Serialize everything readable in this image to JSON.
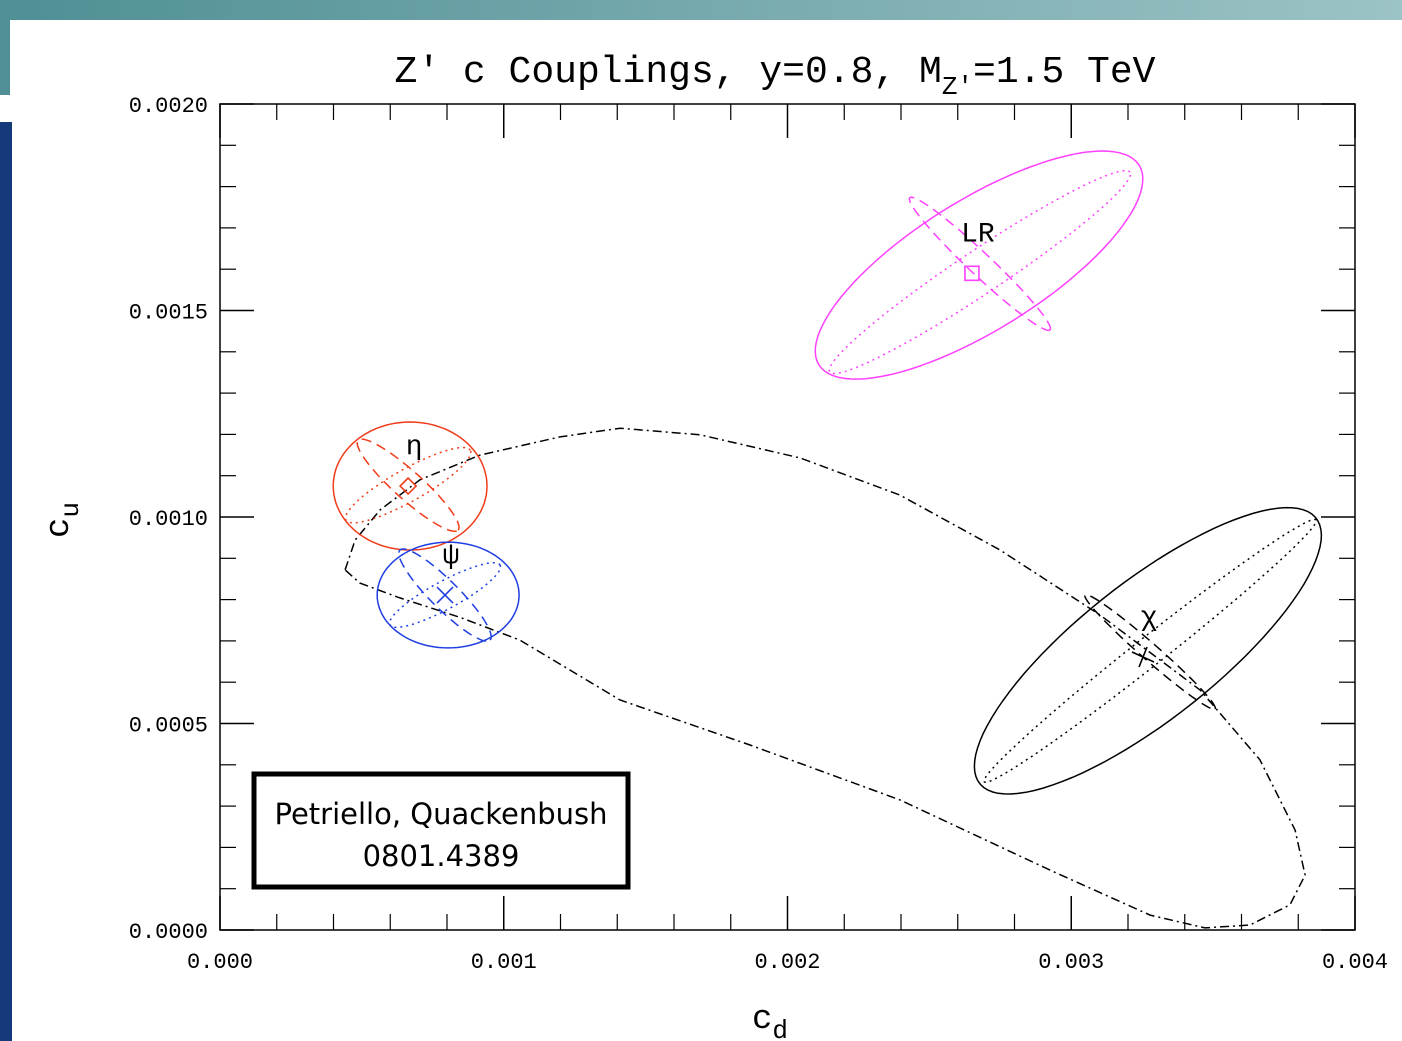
{
  "chart_data": {
    "type": "scatter",
    "title": "Z′ c Couplings, y=0.8, M",
    "title_subscript": "Z′",
    "title_end": "=1.5 TeV",
    "x_label": "c",
    "x_label_subscript": "d",
    "y_label": "c",
    "y_label_subscript": "u",
    "annotation": [
      "Petriello, Quackenbush",
      "0801.4389"
    ],
    "xlim": [
      0,
      0.004
    ],
    "ylim": [
      0,
      0.002
    ],
    "xticks": [
      {
        "value": 0,
        "label": "0.000"
      },
      {
        "value": 0.001,
        "label": "0.001"
      },
      {
        "value": 0.002,
        "label": "0.002"
      },
      {
        "value": 0.003,
        "label": "0.003"
      },
      {
        "value": 0.004,
        "label": "0.004"
      }
    ],
    "yticks": [
      {
        "value": 0,
        "label": "0.0000"
      },
      {
        "value": 0.0005,
        "label": "0.0005"
      },
      {
        "value": 0.001,
        "label": "0.0010"
      },
      {
        "value": 0.0015,
        "label": "0.0015"
      },
      {
        "value": 0.002,
        "label": "0.0020"
      }
    ],
    "series": [
      {
        "name": "η",
        "color": "#f03c1a",
        "marker": "diamond",
        "x": 0.000663,
        "y": 0.001075,
        "ellipses": [
          {
            "style": "solid",
            "center": [
              0.00067,
              0.001075
            ],
            "u": [
              0.000271,
              0
            ],
            "v": [
              0,
              0.000155
            ]
          },
          {
            "style": "dotted",
            "center": [
              0.000663,
              0.001077
            ],
            "u": [
              0.000219,
              8.47e-05
            ],
            "v": [
              -2.82e-05,
              3.39e-05
            ]
          },
          {
            "style": "dashed",
            "center": [
              0.000663,
              0.001077
            ],
            "u": [
              0.000176,
              -0.000109
            ],
            "v": [
              3.52e-05,
              2.42e-05
            ]
          }
        ]
      },
      {
        "name": "ψ",
        "color": "#1f3fe0",
        "marker": "cross",
        "x": 0.000793,
        "y": 0.000811,
        "ellipses": [
          {
            "style": "solid",
            "center": [
              0.000804,
              0.000811
            ],
            "u": [
              0.00025,
              0
            ],
            "v": [
              0,
              0.000128
            ]
          },
          {
            "style": "dotted",
            "center": [
              0.000793,
              0.000811
            ],
            "u": [
              0.000194,
              7.26e-05
            ],
            "v": [
              -2.47e-05,
              2.91e-05
            ]
          },
          {
            "style": "dashed",
            "center": [
              0.000793,
              0.000811
            ],
            "u": [
              0.000159,
              -0.000109
            ],
            "v": [
              3.52e-05,
              2.42e-05
            ]
          }
        ]
      },
      {
        "name": "LR",
        "color": "#ff40ff",
        "marker": "square",
        "x": 0.00265,
        "y": 0.00159,
        "ellipses": [
          {
            "style": "solid",
            "center": [
              0.002675,
              0.00161
            ],
            "u": [
              0.000564,
              0.000242
            ],
            "v": [
              -0.000123,
              0.000133
            ]
          },
          {
            "style": "dotted",
            "center": [
              0.002678,
              0.001593
            ],
            "u": [
              0.000529,
              0.000242
            ],
            "v": [
              -4.23e-05,
              4.36e-05
            ]
          },
          {
            "style": "dashed",
            "center": [
              0.002678,
              0.001613
            ],
            "u": [
              0.000247,
              -0.00016
            ],
            "v": [
              2.82e-05,
              1.94e-05
            ]
          }
        ]
      },
      {
        "name": "χ",
        "color": "#000000",
        "marker": "plus",
        "x": 0.003253,
        "y": 0.000661,
        "ellipses": [
          {
            "style": "solid",
            "center": [
              0.00327,
              0.000676
            ],
            "u": [
              0.000599,
              0.000315
            ],
            "v": [
              -0.000123,
              0.000145
            ]
          },
          {
            "style": "dotted",
            "center": [
              0.003278,
              0.000676
            ],
            "u": [
              0.000585,
              0.000317
            ],
            "v": [
              -2.82e-05,
              2.91e-05
            ]
          },
          {
            "style": "dashed",
            "center": [
              0.003278,
              0.000673
            ],
            "u": [
              0.000229,
              -0.000138
            ],
            "v": [
              2.11e-05,
              1.45e-05
            ]
          }
        ]
      }
    ],
    "curve": {
      "color": "#000000",
      "style": "dashdot",
      "x": [
        0.000441,
        0.000476,
        0.000564,
        0.000705,
        0.000916,
        0.001198,
        0.00141,
        0.001692,
        0.002044,
        0.002396,
        0.002749,
        0.003101,
        0.003454,
        0.003665,
        0.003789,
        0.003824,
        0.003771,
        0.00363,
        0.003471,
        0.003278,
        0.002925,
        0.002396,
        0.001868,
        0.00141,
        0.001057,
        0.000846,
        0.000634,
        0.000493,
        0.000441
      ],
      "y": [
        0.000872,
        0.000944,
        0.001017,
        0.00109,
        0.00115,
        0.001194,
        0.001215,
        0.001199,
        0.001143,
        0.001053,
        0.00092,
        0.000763,
        0.000581,
        0.000412,
        0.000242,
        0.000133,
        6.1e-05,
        1.2e-05,
        5e-06,
        3.6e-05,
        0.000145,
        0.000315,
        0.000448,
        0.000557,
        0.000702,
        0.000757,
        0.000804,
        0.00084,
        0.000872
      ]
    }
  }
}
